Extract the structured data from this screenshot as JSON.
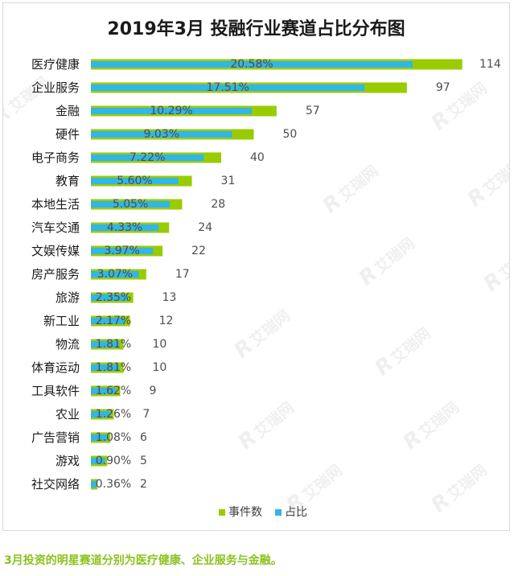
{
  "chart_data": {
    "type": "bar",
    "orientation": "horizontal",
    "title": "2019年3月 投融行业赛道占比分布图",
    "categories": [
      "医疗健康",
      "企业服务",
      "金融",
      "硬件",
      "电子商务",
      "教育",
      "本地生活",
      "汽车交通",
      "文娱传媒",
      "房产服务",
      "旅游",
      "新工业",
      "物流",
      "体育运动",
      "工具软件",
      "农业",
      "广告营销",
      "游戏",
      "社交网络"
    ],
    "series": [
      {
        "name": "事件数",
        "color": "#99cc00",
        "xlim": [
          0,
          120
        ],
        "values": [
          114,
          97,
          57,
          50,
          40,
          31,
          28,
          24,
          22,
          17,
          13,
          12,
          10,
          10,
          9,
          7,
          6,
          5,
          2
        ],
        "data_labels": [
          "114",
          "97",
          "57",
          "50",
          "40",
          "31",
          "28",
          "24",
          "22",
          "17",
          "13",
          "12",
          "10",
          "10",
          "9",
          "7",
          "6",
          "5",
          "2"
        ]
      },
      {
        "name": "占比",
        "color": "#33b5e5",
        "xlim": [
          0,
          25
        ],
        "values": [
          20.58,
          17.51,
          10.29,
          9.03,
          7.22,
          5.6,
          5.05,
          4.33,
          3.97,
          3.07,
          2.35,
          2.17,
          1.81,
          1.81,
          1.62,
          1.26,
          1.08,
          0.9,
          0.36
        ],
        "data_labels": [
          "20.58%",
          "17.51%",
          "10.29%",
          "9.03%",
          "7.22%",
          "5.60%",
          "5.05%",
          "4.33%",
          "3.97%",
          "3.07%",
          "2.35%",
          "2.17%",
          "1.81%",
          "1.81%",
          "1.62%",
          "1.26%",
          "1.08%",
          "0.90%",
          "0.36%"
        ]
      }
    ],
    "legend": {
      "position": "bottom"
    },
    "grid": false,
    "axes_visible": false
  },
  "caption": "3月投资的明星赛道分别为医疗健康、企业服务与金融。",
  "watermark": {
    "logo": "R",
    "text": "艾瑞网"
  },
  "colors": {
    "caption": "#8cc21f"
  }
}
